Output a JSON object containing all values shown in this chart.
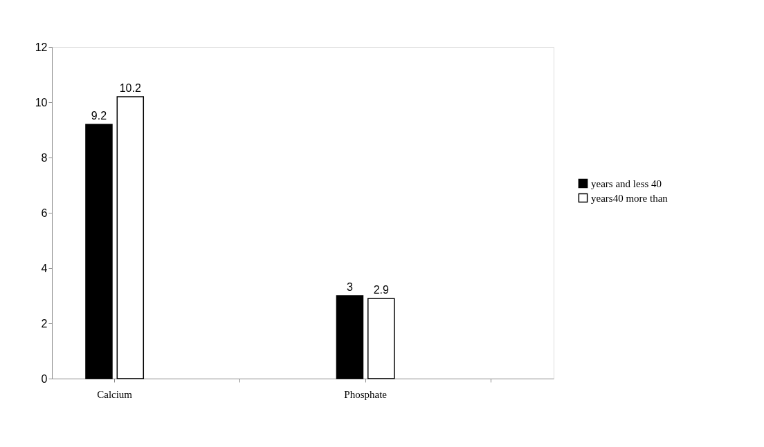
{
  "chart_data": {
    "type": "bar",
    "categories": [
      "Calcium",
      null,
      "Phosphate",
      null
    ],
    "series": [
      {
        "name": "years and less 40",
        "color": "#000000",
        "values": [
          9.2,
          null,
          3,
          null
        ]
      },
      {
        "name": "years40 more than",
        "color": "#ffffff",
        "values": [
          10.2,
          null,
          2.9,
          null
        ]
      }
    ],
    "ylim": [
      0,
      12
    ],
    "yticks": [
      0,
      2,
      4,
      6,
      8,
      10,
      12
    ],
    "data_labels": true,
    "grid": false,
    "legend": "right"
  }
}
